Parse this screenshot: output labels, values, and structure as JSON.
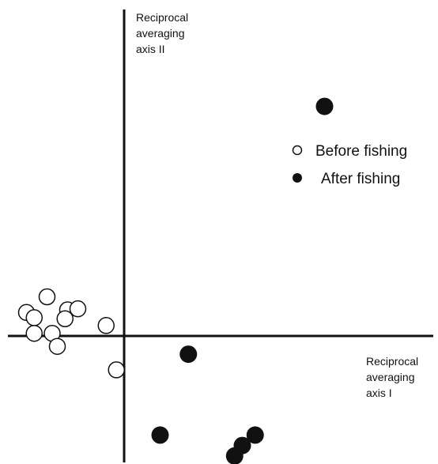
{
  "chart_data": {
    "type": "scatter",
    "title": "",
    "xlabel": [
      "Reciprocal",
      "averaging",
      "axis I"
    ],
    "ylabel": [
      "Reciprocal",
      "averaging",
      "axis II"
    ],
    "grid": false,
    "legend_position": "right",
    "series": [
      {
        "name": "Before fishing",
        "marker": "open-circle",
        "color": "#111111",
        "points": [
          {
            "x": -1.5,
            "y": 0.75
          },
          {
            "x": -1.9,
            "y": 0.45
          },
          {
            "x": -1.75,
            "y": 0.35
          },
          {
            "x": -1.1,
            "y": 0.5
          },
          {
            "x": -0.9,
            "y": 0.52
          },
          {
            "x": -1.15,
            "y": 0.33
          },
          {
            "x": -0.35,
            "y": 0.2
          },
          {
            "x": -1.75,
            "y": 0.05
          },
          {
            "x": -1.4,
            "y": 0.05
          },
          {
            "x": -1.3,
            "y": -0.2
          },
          {
            "x": -0.15,
            "y": -0.65
          }
        ]
      },
      {
        "name": "After fishing",
        "marker": "filled-circle",
        "color": "#111111",
        "points": [
          {
            "x": 3.9,
            "y": 4.4
          },
          {
            "x": 1.25,
            "y": -0.35
          },
          {
            "x": 0.7,
            "y": -1.9
          },
          {
            "x": 2.3,
            "y": -2.1
          },
          {
            "x": 2.55,
            "y": -1.9
          },
          {
            "x": 2.15,
            "y": -2.3
          }
        ]
      }
    ]
  }
}
